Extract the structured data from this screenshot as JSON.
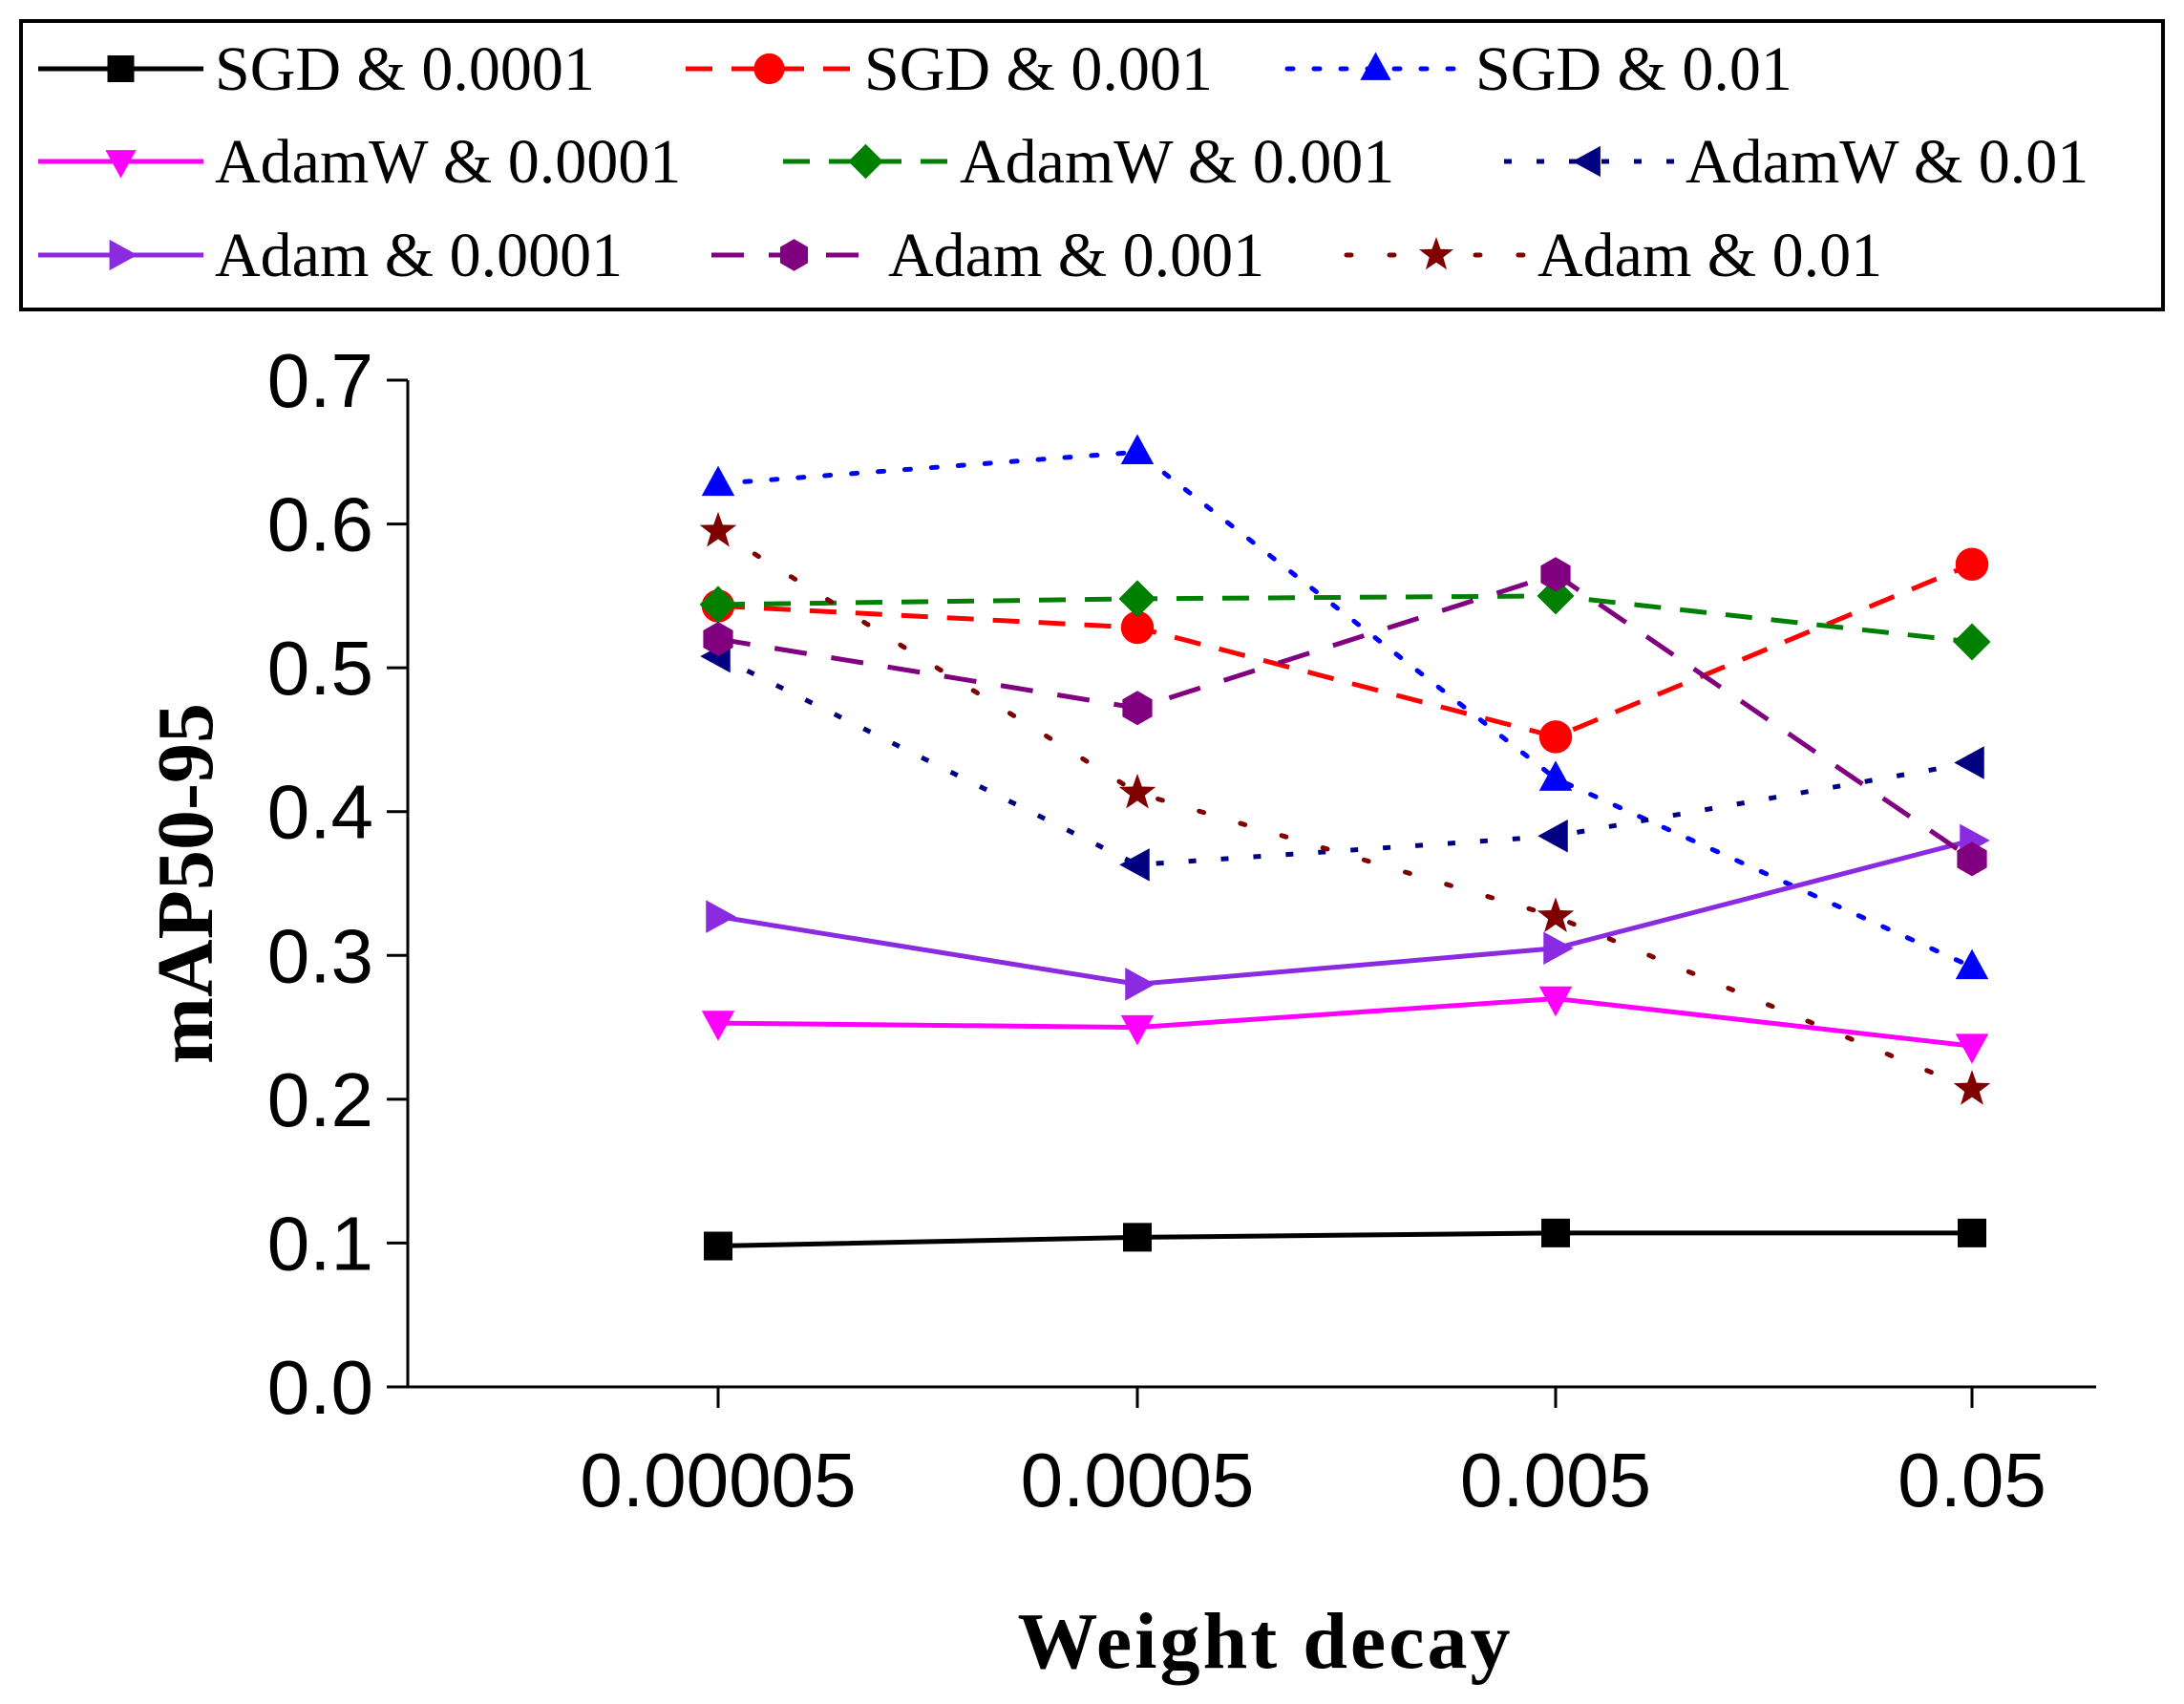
{
  "chart_data": {
    "type": "line",
    "title": "",
    "xlabel": "Weight decay",
    "ylabel": "mAP50-95",
    "categories": [
      "0.00005",
      "0.0005",
      "0.005",
      "0.05"
    ],
    "ylim": [
      0.0,
      0.7
    ],
    "yticks": [
      "0.0",
      "0.1",
      "0.2",
      "0.3",
      "0.4",
      "0.5",
      "0.6",
      "0.7"
    ],
    "grid": false,
    "legend_position": "top",
    "series": [
      {
        "name": "SGD & 0.0001",
        "values": [
          0.098,
          0.104,
          0.107,
          0.107
        ],
        "color": "#000000",
        "dash": "solid",
        "marker": "square"
      },
      {
        "name": "SGD & 0.001",
        "values": [
          0.543,
          0.528,
          0.452,
          0.572
        ],
        "color": "#ff0000",
        "dash": "dashed",
        "marker": "circle"
      },
      {
        "name": "SGD & 0.01",
        "values": [
          0.628,
          0.65,
          0.423,
          0.292
        ],
        "color": "#0000ff",
        "dash": "dotted",
        "marker": "triangle-up"
      },
      {
        "name": "AdamW & 0.0001",
        "values": [
          0.253,
          0.25,
          0.27,
          0.237
        ],
        "color": "#ff00ff",
        "dash": "solid",
        "marker": "triangle-down"
      },
      {
        "name": "AdamW & 0.001",
        "values": [
          0.544,
          0.548,
          0.55,
          0.518
        ],
        "color": "#008000",
        "dash": "dashed",
        "marker": "diamond"
      },
      {
        "name": "AdamW & 0.01",
        "values": [
          0.508,
          0.363,
          0.383,
          0.434
        ],
        "color": "#000080",
        "dash": "dashdot",
        "marker": "triangle-left"
      },
      {
        "name": "Adam & 0.0001",
        "values": [
          0.327,
          0.28,
          0.305,
          0.38
        ],
        "color": "#8a2be2",
        "dash": "solid",
        "marker": "triangle-right"
      },
      {
        "name": "Adam & 0.001",
        "values": [
          0.52,
          0.472,
          0.565,
          0.367
        ],
        "color": "#800080",
        "dash": "longdash",
        "marker": "hexagon"
      },
      {
        "name": "Adam & 0.01",
        "values": [
          0.595,
          0.413,
          0.327,
          0.207
        ],
        "color": "#800000",
        "dash": "sparsedot",
        "marker": "star"
      }
    ]
  }
}
